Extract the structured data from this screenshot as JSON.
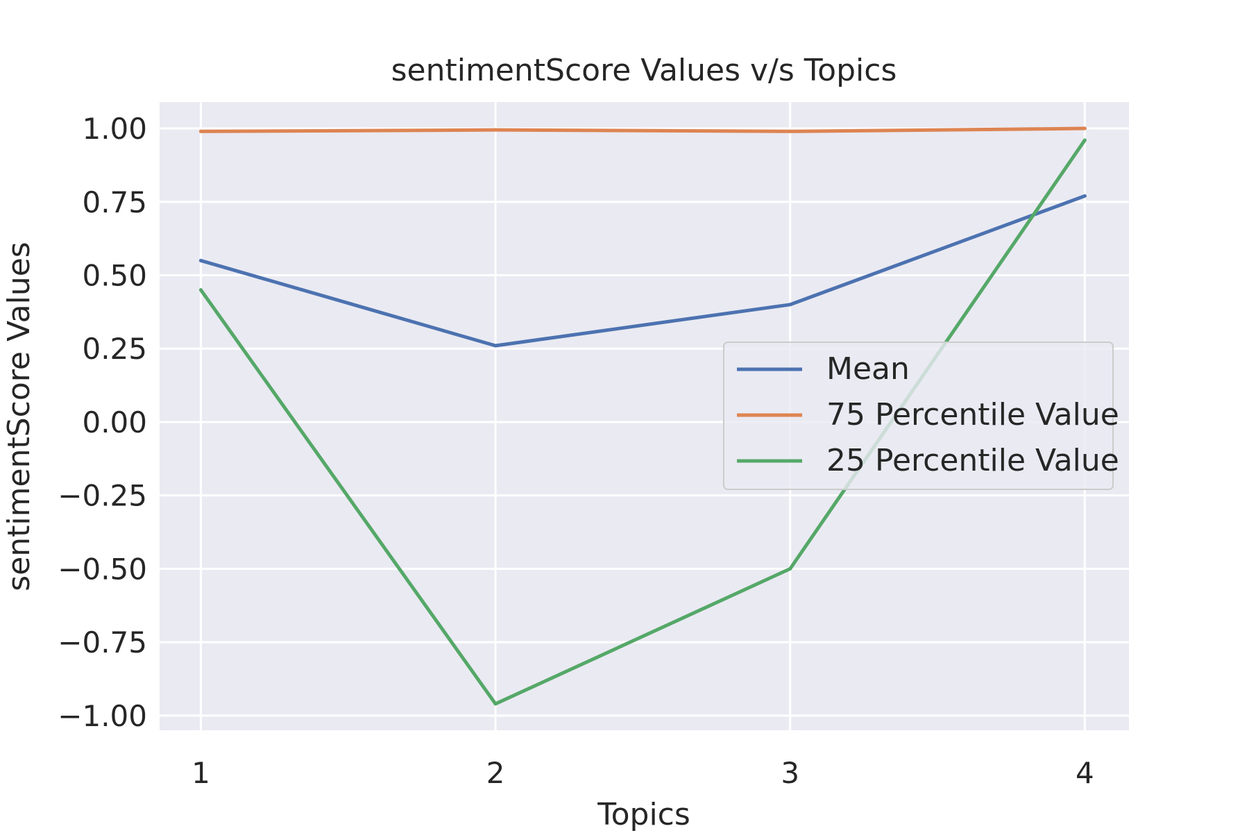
{
  "chart_data": {
    "type": "line",
    "title": "sentimentScore Values v/s Topics",
    "xlabel": "Topics",
    "ylabel": "sentimentScore Values",
    "x": [
      1,
      2,
      3,
      4
    ],
    "x_tick_labels": [
      "1",
      "2",
      "3",
      "4"
    ],
    "xlim": [
      0.86,
      4.15
    ],
    "ylim": [
      -1.05,
      1.09
    ],
    "y_ticks": [
      -1.0,
      -0.75,
      -0.5,
      -0.25,
      0.0,
      0.25,
      0.5,
      0.75,
      1.0
    ],
    "y_tick_labels": [
      "−1.00",
      "−0.75",
      "−0.50",
      "−0.25",
      "0.00",
      "0.25",
      "0.50",
      "0.75",
      "1.00"
    ],
    "grid": true,
    "legend_position": "center-right",
    "background_color": "#eaeaf2",
    "series": [
      {
        "name": "Mean",
        "color": "#4c72b0",
        "values": [
          0.55,
          0.26,
          0.4,
          0.77
        ]
      },
      {
        "name": "75 Percentile Value",
        "color": "#dd8452",
        "values": [
          0.99,
          0.995,
          0.99,
          1.0
        ]
      },
      {
        "name": "25 Percentile Value",
        "color": "#55a868",
        "values": [
          0.45,
          -0.96,
          -0.5,
          0.96
        ]
      }
    ]
  }
}
